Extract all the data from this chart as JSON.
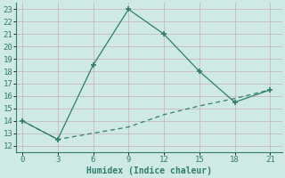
{
  "xlabel": "Humidex (Indice chaleur)",
  "background_color": "#cfe9e5",
  "grid_color": "#c0d8d4",
  "line1_x": [
    0,
    3,
    6,
    9,
    12,
    15,
    18,
    21
  ],
  "line1_y": [
    14.0,
    12.5,
    18.5,
    23.0,
    21.0,
    18.0,
    15.5,
    16.5
  ],
  "line2_x": [
    0,
    3,
    6,
    9,
    12,
    15,
    18,
    21
  ],
  "line2_y": [
    14.0,
    12.5,
    13.0,
    13.5,
    14.5,
    15.2,
    15.8,
    16.5
  ],
  "line_color": "#2e7d6e",
  "xlim": [
    -0.5,
    22
  ],
  "ylim": [
    11.5,
    23.5
  ],
  "xticks": [
    0,
    3,
    6,
    9,
    12,
    15,
    18,
    21
  ],
  "yticks": [
    12,
    13,
    14,
    15,
    16,
    17,
    18,
    19,
    20,
    21,
    22,
    23
  ],
  "xlabel_fontsize": 7,
  "tick_fontsize": 6.5
}
